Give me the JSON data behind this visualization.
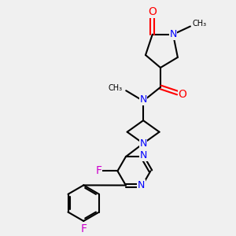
{
  "bg_color": "#f0f0f0",
  "bond_color": "#000000",
  "N_color": "#0000ff",
  "O_color": "#ff0000",
  "F_color": "#cc00cc",
  "line_width": 1.5,
  "font_size": 8,
  "fig_width": 3.0,
  "fig_height": 3.0,
  "dpi": 100,
  "xlim": [
    0,
    10
  ],
  "ylim": [
    0,
    10
  ]
}
